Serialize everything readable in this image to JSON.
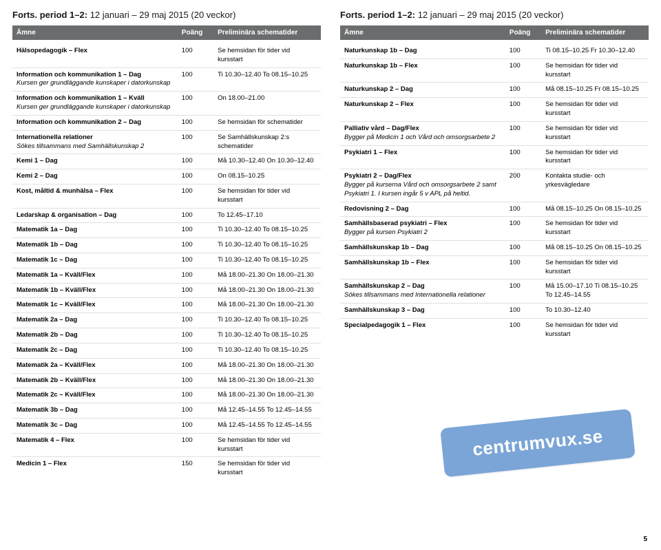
{
  "colors": {
    "header_bg": "#6a6c6d",
    "badge_bg": "#7aa5d6",
    "divider": "#e0e0e0"
  },
  "page_number": "5",
  "badge_text": "centrumvux.se",
  "left": {
    "title_bold": "Forts. period 1–2:",
    "title_rest": " 12 januari – 29 maj 2015 (20 veckor)",
    "headers": {
      "subject": "Ämne",
      "points": "Poäng",
      "schedule": "Preliminära schematider"
    },
    "rows": [
      {
        "name": "Hälsopedagogik – Flex",
        "note": "",
        "points": "100",
        "schedule": "Se hemsidan för tider vid kursstart"
      },
      {
        "name": "Information och kommunikation 1 – Dag",
        "note": "Kursen ger grundläggande kunskaper i datorkunskap",
        "points": "100",
        "schedule": "Ti  10.30–12.40   To  08.15–10.25"
      },
      {
        "name": "Information och kommunikation 1 – Kväll",
        "note": "Kursen ger grundläggande kunskaper i datorkunskap",
        "points": "100",
        "schedule": "On  18.00–21.00"
      },
      {
        "name": "Information och kommunikation 2 – Dag",
        "note": "",
        "points": "100",
        "schedule": "Se hemsidan för schematider"
      },
      {
        "name": "Internationella relationer",
        "note": "Sökes tillsammans med Samhällskunskap 2",
        "points": "100",
        "schedule": "Se Samhällskunskap 2:s schematider"
      },
      {
        "name": "Kemi 1 – Dag",
        "note": "",
        "points": "100",
        "schedule": "Må  10.30–12.40   On  10.30–12.40"
      },
      {
        "name": "Kemi 2 – Dag",
        "note": "",
        "points": "100",
        "schedule": "On  08.15–10.25"
      },
      {
        "name": "Kost, måltid & munhälsa – Flex",
        "note": "",
        "points": "100",
        "schedule": "Se hemsidan för tider vid kursstart"
      },
      {
        "name": "Ledarskap & organisation – Dag",
        "note": "",
        "points": "100",
        "schedule": "To  12.45–17.10"
      },
      {
        "name": "Matematik 1a – Dag",
        "note": "",
        "points": "100",
        "schedule": "Ti  10.30–12.40   To  08.15–10.25"
      },
      {
        "name": "Matematik 1b – Dag",
        "note": "",
        "points": "100",
        "schedule": "Ti  10.30–12.40   To  08.15–10.25"
      },
      {
        "name": "Matematik 1c – Dag",
        "note": "",
        "points": "100",
        "schedule": "Ti  10.30–12.40   To  08.15–10.25"
      },
      {
        "name": "Matematik 1a – Kväll/Flex",
        "note": "",
        "points": "100",
        "schedule": "Må  18.00–21.30   On  18.00–21.30"
      },
      {
        "name": "Matematik 1b – Kväll/Flex",
        "note": "",
        "points": "100",
        "schedule": "Må  18.00–21.30   On  18.00–21.30"
      },
      {
        "name": "Matematik 1c – Kväll/Flex",
        "note": "",
        "points": "100",
        "schedule": "Må  18.00–21.30   On  18.00–21.30"
      },
      {
        "name": "Matematik 2a – Dag",
        "note": "",
        "points": "100",
        "schedule": "Ti  10.30–12.40   To  08.15–10.25"
      },
      {
        "name": "Matematik 2b – Dag",
        "note": "",
        "points": "100",
        "schedule": "Ti  10.30–12.40   To  08.15–10.25"
      },
      {
        "name": "Matematik 2c – Dag",
        "note": "",
        "points": "100",
        "schedule": "Ti  10.30–12.40   To  08.15–10.25"
      },
      {
        "name": "Matematik 2a – Kväll/Flex",
        "note": "",
        "points": "100",
        "schedule": "Må  18.00–21.30   On  18.00–21.30"
      },
      {
        "name": "Matematik 2b – Kväll/Flex",
        "note": "",
        "points": "100",
        "schedule": "Må  18.00–21.30   On  18.00–21.30"
      },
      {
        "name": "Matematik 2c – Kväll/Flex",
        "note": "",
        "points": "100",
        "schedule": "Må  18.00–21.30   On  18.00–21.30"
      },
      {
        "name": "Matematik 3b – Dag",
        "note": "",
        "points": "100",
        "schedule": "Må  12.45–14.55   To  12.45–14.55"
      },
      {
        "name": "Matematik 3c – Dag",
        "note": "",
        "points": "100",
        "schedule": "Må  12.45–14.55   To  12.45–14.55"
      },
      {
        "name": "Matematik 4 – Flex",
        "note": "",
        "points": "100",
        "schedule": "Se hemsidan för tider vid kursstart"
      },
      {
        "name": "Medicin 1 – Flex",
        "note": "",
        "points": "150",
        "schedule": "Se hemsidan för tider vid kursstart"
      }
    ]
  },
  "right": {
    "title_bold": "Forts. period 1–2:",
    "title_rest": " 12 januari – 29 maj 2015 (20 veckor)",
    "headers": {
      "subject": "Ämne",
      "points": "Poäng",
      "schedule": "Preliminära schematider"
    },
    "rows": [
      {
        "name": "Naturkunskap 1b – Dag",
        "note": "",
        "points": "100",
        "schedule": "Ti  08.15–10.25   Fr  10.30–12.40"
      },
      {
        "name": "Naturkunskap 1b – Flex",
        "note": "",
        "points": "100",
        "schedule": "Se hemsidan för tider vid kursstart"
      },
      {
        "name": "Naturkunskap 2 – Dag",
        "note": "",
        "points": "100",
        "schedule": "Må  08.15–10.25   Fr  08.15–10.25"
      },
      {
        "name": "Naturkunskap 2 – Flex",
        "note": "",
        "points": "100",
        "schedule": "Se hemsidan för tider vid kursstart"
      },
      {
        "name": "Palliativ vård – Dag/Flex",
        "note": "Bygger på Medicin 1 och Vård och omsorgsarbete 2",
        "points": "100",
        "schedule": "Se hemsidan för tider vid kursstart"
      },
      {
        "name": "Psykiatri 1 – Flex",
        "note": "",
        "points": "100",
        "schedule": "Se hemsidan för tider vid kursstart"
      },
      {
        "name": "Psykiatri 2 – Dag/Flex",
        "note": "Bygger på kurserna Vård och omsorgsarbete 2 samt Psykiatri 1. I kursen ingår 5 v APL på heltid.",
        "points": "200",
        "schedule": "Kontakta studie- och yrkesvägledare"
      },
      {
        "name": "Redovisning 2 – Dag",
        "note": "",
        "points": "100",
        "schedule": "Må  08.15–10.25   On  08.15–10.25"
      },
      {
        "name": "Samhällsbaserad psykiatri – Flex",
        "note": "Bygger på kursen Psykiatri 2",
        "points": "100",
        "schedule": "Se hemsidan för tider vid kursstart"
      },
      {
        "name": "Samhällskunskap 1b – Dag",
        "note": "",
        "points": "100",
        "schedule": "Må  08.15–10.25   On  08.15–10.25"
      },
      {
        "name": "Samhällskunskap 1b – Flex",
        "note": "",
        "points": "100",
        "schedule": "Se hemsidan för tider vid kursstart"
      },
      {
        "name": "Samhällskunskap 2 – Dag",
        "note": "Sökes tillsammans med Internationella relationer",
        "points": "100",
        "schedule": "Må  15.00–17.10   Ti  08.15–10.25\nTo  12.45–14.55"
      },
      {
        "name": "Samhällskunskap 3 – Dag",
        "note": "",
        "points": "100",
        "schedule": "To  10.30–12.40"
      },
      {
        "name": "Specialpedagogik 1 – Flex",
        "note": "",
        "points": "100",
        "schedule": "Se hemsidan för tider vid kursstart"
      }
    ]
  }
}
